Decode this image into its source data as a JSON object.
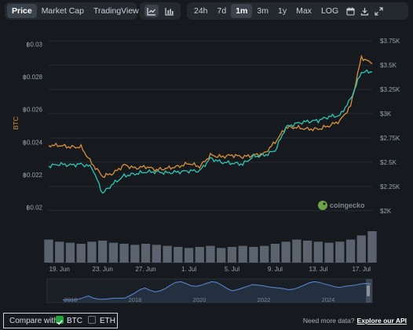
{
  "view_tabs": {
    "items": [
      {
        "label": "Price",
        "active": true
      },
      {
        "label": "Market Cap",
        "active": false
      },
      {
        "label": "TradingView",
        "active": false
      }
    ]
  },
  "chart_style": {
    "line_icon": "line-chart-icon",
    "bar_icon": "candlestick-chart-icon",
    "active": "line"
  },
  "range_tabs": {
    "items": [
      {
        "label": "24h",
        "active": false
      },
      {
        "label": "7d",
        "active": false
      },
      {
        "label": "1m",
        "active": true
      },
      {
        "label": "3m",
        "active": false
      },
      {
        "label": "1y",
        "active": false
      },
      {
        "label": "Max",
        "active": false
      },
      {
        "label": "LOG",
        "active": false
      }
    ],
    "icons": [
      "calendar-icon",
      "download-icon",
      "fullscreen-icon"
    ]
  },
  "colors": {
    "btc_line": "#d9903a",
    "eth_line": "#2fc6b4",
    "volume": "#5a636e",
    "navigator": "#5b8ad8",
    "checkbox_on": "#1ea83c",
    "background": "#161a1f"
  },
  "watermark": "coingecko",
  "chart_data": {
    "type": "line",
    "x": [
      "18 Jun",
      "19 Jun",
      "20 Jun",
      "21 Jun",
      "22 Jun",
      "23 Jun",
      "24 Jun",
      "25 Jun",
      "26 Jun",
      "27 Jun",
      "28 Jun",
      "29 Jun",
      "30 Jun",
      "1 Jul",
      "2 Jul",
      "3 Jul",
      "4 Jul",
      "5 Jul",
      "6 Jul",
      "7 Jul",
      "8 Jul",
      "9 Jul",
      "10 Jul",
      "11 Jul",
      "12 Jul",
      "13 Jul",
      "14 Jul",
      "15 Jul",
      "16 Jul",
      "17 Jul",
      "18 Jul"
    ],
    "x_ticks": [
      "19. Jun",
      "23. Jun",
      "27. Jun",
      "1. Jul",
      "5. Jul",
      "9. Jul",
      "13. Jul",
      "17. Jul"
    ],
    "left_axis": {
      "label": "BTC",
      "ticks": [
        "฿0.02",
        "฿0.022",
        "฿0.024",
        "฿0.026",
        "฿0.028",
        "฿0.03"
      ],
      "range": [
        0.0195,
        0.0305
      ]
    },
    "right_axis": {
      "label": "",
      "ticks": [
        "$2K",
        "$2.25K",
        "$2.5K",
        "$2.75K",
        "$3K",
        "$3.25K",
        "$3.5K",
        "$3.75K"
      ],
      "range": [
        1950,
        3800
      ]
    },
    "series": [
      {
        "name": "BTC",
        "axis": "left",
        "values": [
          0.0238,
          0.0238,
          0.0237,
          0.0237,
          0.0227,
          0.0219,
          0.0221,
          0.0226,
          0.0224,
          0.0225,
          0.0223,
          0.0224,
          0.0225,
          0.0227,
          0.0225,
          0.0232,
          0.0231,
          0.0232,
          0.0231,
          0.0232,
          0.0233,
          0.024,
          0.0249,
          0.0249,
          0.0248,
          0.0248,
          0.025,
          0.0253,
          0.0262,
          0.0292,
          0.0288
        ]
      },
      {
        "name": "",
        "axis": "right",
        "values": [
          2460,
          2480,
          2470,
          2480,
          2450,
          2180,
          2280,
          2360,
          2380,
          2400,
          2400,
          2390,
          2400,
          2410,
          2410,
          2540,
          2500,
          2490,
          2480,
          2560,
          2570,
          2620,
          2860,
          2900,
          2920,
          2930,
          2970,
          2980,
          3150,
          3430,
          3430
        ]
      }
    ],
    "volume": [
      22,
      20,
      19,
      18,
      20,
      21,
      19,
      18,
      17,
      18,
      17,
      16,
      15,
      14,
      15,
      16,
      14,
      15,
      16,
      15,
      16,
      18,
      20,
      22,
      21,
      20,
      19,
      20,
      22,
      26,
      30
    ],
    "navigator": {
      "x_ticks": [
        "2016",
        "2018",
        "2020",
        "2022",
        "2024"
      ],
      "values": [
        0.02,
        0.02,
        0.02,
        0.03,
        0.06,
        0.09,
        0.05,
        0.03,
        0.03,
        0.04,
        0.05,
        0.05,
        0.05,
        0.09,
        0.14,
        0.2,
        0.23,
        0.19,
        0.16,
        0.18,
        0.22,
        0.28,
        0.33,
        0.34,
        0.31,
        0.27,
        0.26,
        0.28,
        0.31,
        0.34,
        0.33,
        0.28,
        0.22,
        0.18,
        0.2,
        0.23,
        0.26,
        0.29,
        0.28,
        0.27,
        0.25,
        0.24,
        0.23,
        0.22,
        0.2,
        0.21,
        0.24,
        0.28,
        0.32,
        0.34,
        0.33,
        0.3,
        0.28,
        0.25,
        0.24,
        0.26,
        0.27,
        0.28,
        0.3,
        0.31,
        0.3
      ],
      "range": [
        0,
        0.36
      ]
    }
  },
  "footer": {
    "compare_label": "Compare with:",
    "btc_label": "BTC",
    "btc_checked": true,
    "eth_label": "ETH",
    "eth_checked": false,
    "api_text": "Need more data?",
    "api_link": "Explore our API"
  }
}
